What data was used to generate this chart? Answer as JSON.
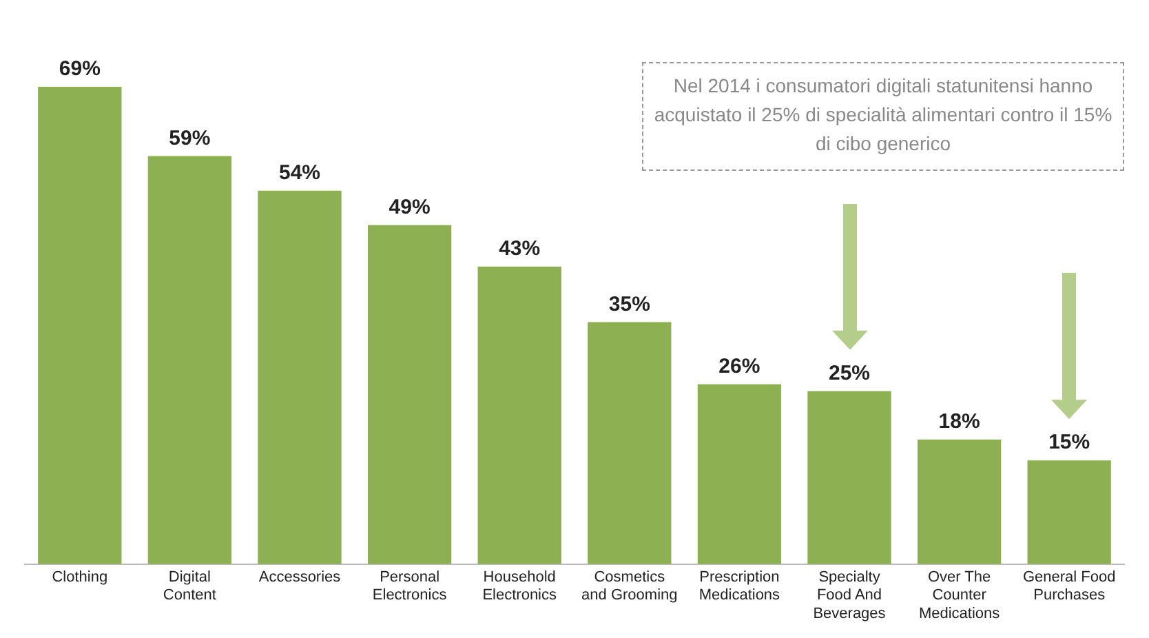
{
  "chart_data": {
    "type": "bar",
    "categories": [
      "Clothing",
      "Digital Content",
      "Accessories",
      "Personal Electronics",
      "Household Electronics",
      "Cosmetics and Grooming",
      "Prescription Medications",
      "Specialty Food And Beverages",
      "Over The Counter Medications",
      "General Food Purchases"
    ],
    "values": [
      69,
      59,
      54,
      49,
      43,
      35,
      26,
      25,
      18,
      15
    ],
    "value_labels": [
      "69%",
      "59%",
      "54%",
      "49%",
      "43%",
      "35%",
      "26%",
      "25%",
      "18%",
      "15%"
    ],
    "color": "#8db152",
    "grid": false,
    "legend": false,
    "annotations": [
      "Nel 2014 i consumatori digitali statunitensi hanno acquistato il 25% di specialità alimentari contro il 15% di cibo generico"
    ]
  }
}
